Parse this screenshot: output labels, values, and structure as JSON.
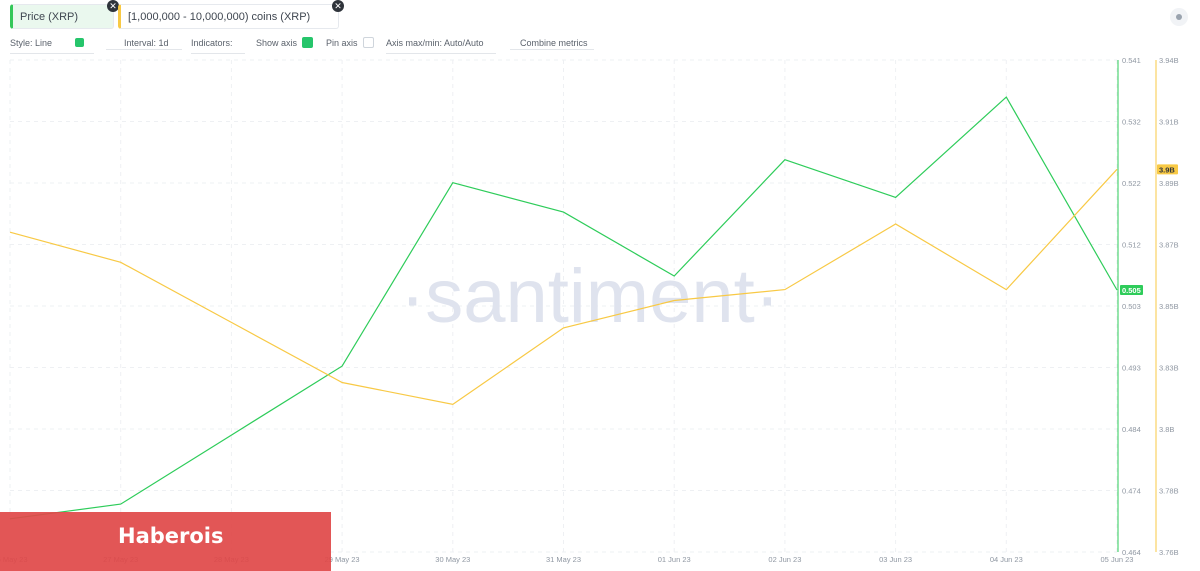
{
  "tabs": [
    {
      "label": "Price (XRP)",
      "color": "#34c759"
    },
    {
      "label": "[1,000,000 - 10,000,000) coins (XRP)",
      "color": "#f8c945"
    }
  ],
  "controls": {
    "style": "Style: Line",
    "interval": "Interval: 1d",
    "indicators": "Indicators:",
    "show_axis": "Show axis",
    "pin_axis": "Pin axis",
    "axis_minmax": "Axis max/min: Auto/Auto",
    "combine": "Combine metrics"
  },
  "watermark": "·santiment·",
  "banner": {
    "text": "Haberois",
    "color": "#e04848"
  },
  "chart_data": {
    "type": "line",
    "x": [
      "26 May 23",
      "27 May 23",
      "28 May 23",
      "29 May 23",
      "30 May 23",
      "31 May 23",
      "01 Jun 23",
      "02 Jun 23",
      "03 Jun 23",
      "04 Jun 23",
      "05 Jun 23"
    ],
    "series": [
      {
        "name": "Price (XRP)",
        "color": "#2ecc5a",
        "axis": "left",
        "values": [
          0.4692,
          0.4715,
          0.4823,
          0.4931,
          0.5218,
          0.5172,
          0.5072,
          0.5254,
          0.5195,
          0.5352,
          0.505
        ]
      },
      {
        "name": "[1,000,000 - 10,000,000) coins (XRP)",
        "color": "#f8c945",
        "axis": "right",
        "values": [
          3.877,
          3.866,
          3.844,
          3.822,
          3.814,
          3.842,
          3.852,
          3.856,
          3.88,
          3.856,
          3.9
        ]
      }
    ],
    "left_axis": {
      "ticks": [
        "0.541",
        "0.532",
        "0.522",
        "0.512",
        "0.503",
        "0.493",
        "0.484",
        "0.474",
        "0.464"
      ],
      "range": [
        0.464,
        0.541
      ]
    },
    "right_axis": {
      "ticks": [
        "3.94B",
        "3.91B",
        "3.89B",
        "3.87B",
        "3.85B",
        "3.83B",
        "3.8B",
        "3.78B",
        "3.76B"
      ],
      "range": [
        3.76,
        3.94
      ]
    },
    "last_labels": {
      "price": "0.505",
      "coins": "3.9B"
    },
    "grid": true
  }
}
